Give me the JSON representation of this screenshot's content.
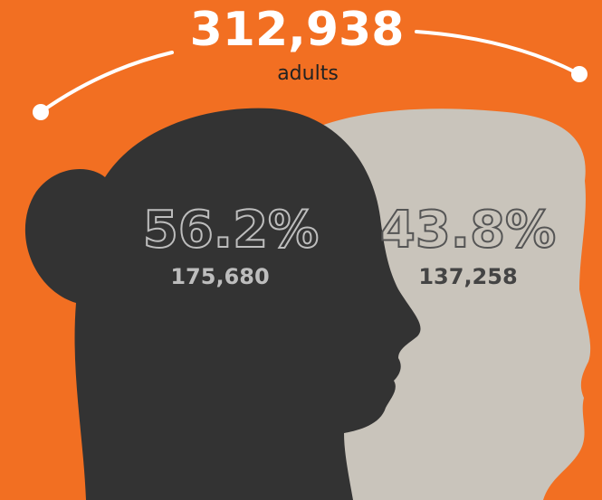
{
  "total": {
    "value": "312,938",
    "label": "adults"
  },
  "groups": [
    {
      "percent": "56.2%",
      "count": "175,680"
    },
    {
      "percent": "43.8%",
      "count": "137,258"
    }
  ]
}
